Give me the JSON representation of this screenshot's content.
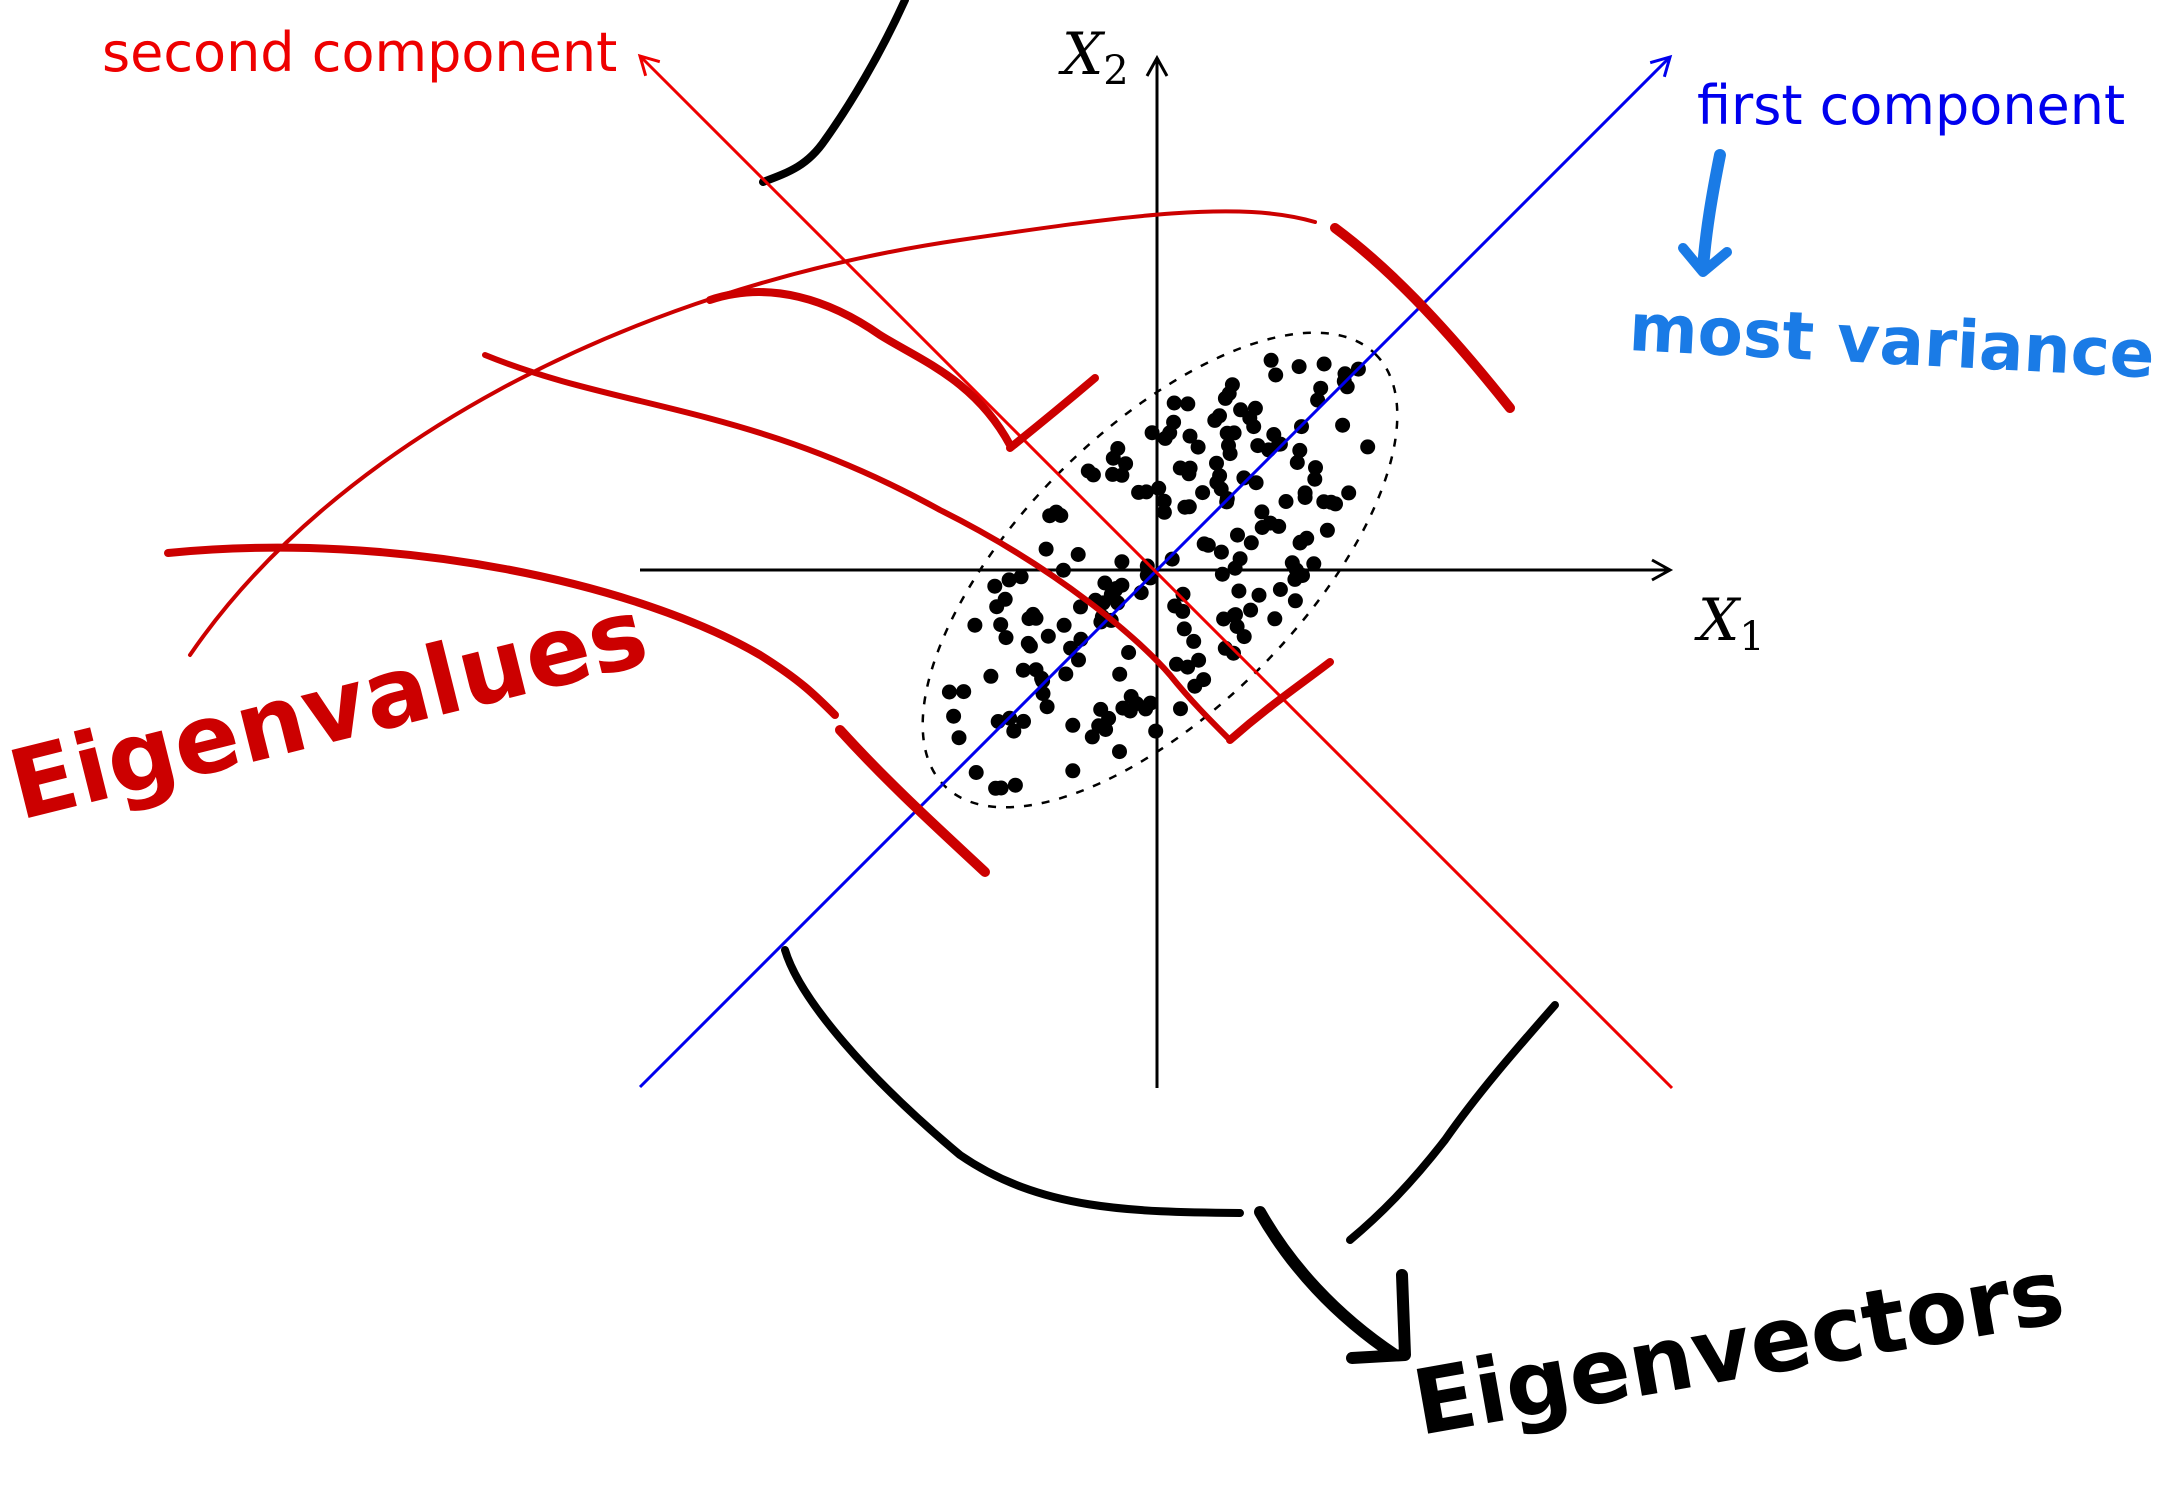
{
  "diagram": {
    "axes": {
      "x1": {
        "label": "X",
        "sub": "1"
      },
      "x2": {
        "label": "X",
        "sub": "2"
      }
    },
    "components": {
      "first": {
        "label": "first component",
        "color": "#0000ee"
      },
      "second": {
        "label": "second component",
        "color": "#ee0000"
      }
    },
    "annotations": {
      "most_variance": {
        "text": "most variance",
        "color": "#1a7be6"
      },
      "eigenvalues": {
        "text": "Eigenvalues",
        "color": "#cc0000"
      },
      "eigenvectors": {
        "text": "Eigenvectors",
        "color": "#000000"
      }
    }
  }
}
